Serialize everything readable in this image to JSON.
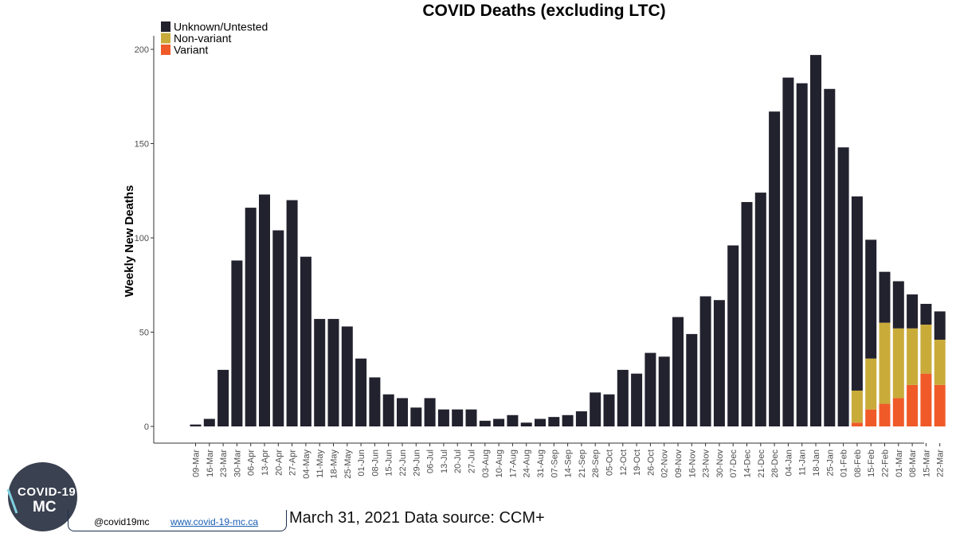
{
  "chart_data": {
    "type": "bar",
    "stacked": true,
    "title": "COVID Deaths (excluding LTC)",
    "xlabel": "",
    "ylabel": "Weekly New Deaths",
    "ylim": [
      0,
      205
    ],
    "yticks": [
      0,
      50,
      100,
      150,
      200
    ],
    "grid": false,
    "legend_position": "top-left",
    "categories": [
      "09-Mar",
      "16-Mar",
      "23-Mar",
      "30-Mar",
      "06-Apr",
      "13-Apr",
      "20-Apr",
      "27-Apr",
      "04-May",
      "11-May",
      "18-May",
      "25-May",
      "01-Jun",
      "08-Jun",
      "15-Jun",
      "22-Jun",
      "29-Jun",
      "06-Jul",
      "13-Jul",
      "20-Jul",
      "27-Jul",
      "03-Aug",
      "10-Aug",
      "17-Aug",
      "24-Aug",
      "31-Aug",
      "07-Sep",
      "14-Sep",
      "21-Sep",
      "28-Sep",
      "05-Oct",
      "12-Oct",
      "19-Oct",
      "26-Oct",
      "02-Nov",
      "09-Nov",
      "16-Nov",
      "23-Nov",
      "30-Nov",
      "07-Dec",
      "14-Dec",
      "21-Dec",
      "28-Dec",
      "04-Jan",
      "11-Jan",
      "18-Jan",
      "25-Jan",
      "01-Feb",
      "08-Feb",
      "15-Feb",
      "22-Feb",
      "01-Mar",
      "08-Mar",
      "15-Mar",
      "22-Mar"
    ],
    "series": [
      {
        "name": "Variant",
        "color": "#f05a28",
        "values": [
          0,
          0,
          0,
          0,
          0,
          0,
          0,
          0,
          0,
          0,
          0,
          0,
          0,
          0,
          0,
          0,
          0,
          0,
          0,
          0,
          0,
          0,
          0,
          0,
          0,
          0,
          0,
          0,
          0,
          0,
          0,
          0,
          0,
          0,
          0,
          0,
          0,
          0,
          0,
          0,
          0,
          0,
          0,
          0,
          0,
          0,
          0,
          0,
          2,
          9,
          12,
          15,
          22,
          28,
          22
        ]
      },
      {
        "name": "Non-variant",
        "color": "#c9ab3a",
        "values": [
          0,
          0,
          0,
          0,
          0,
          0,
          0,
          0,
          0,
          0,
          0,
          0,
          0,
          0,
          0,
          0,
          0,
          0,
          0,
          0,
          0,
          0,
          0,
          0,
          0,
          0,
          0,
          0,
          0,
          0,
          0,
          0,
          0,
          0,
          0,
          0,
          0,
          0,
          0,
          0,
          0,
          0,
          0,
          0,
          0,
          0,
          0,
          0,
          17,
          27,
          43,
          37,
          30,
          26,
          24
        ]
      },
      {
        "name": "Unknown/Untested",
        "color": "#22212e",
        "values": [
          1,
          4,
          30,
          88,
          116,
          123,
          104,
          120,
          90,
          57,
          57,
          53,
          36,
          26,
          17,
          15,
          10,
          15,
          9,
          9,
          9,
          3,
          4,
          6,
          2,
          4,
          5,
          6,
          8,
          18,
          17,
          30,
          28,
          39,
          37,
          58,
          49,
          69,
          67,
          96,
          119,
          124,
          167,
          185,
          182,
          197,
          179,
          148,
          103,
          63,
          27,
          25,
          18,
          11,
          15
        ]
      }
    ],
    "legend_order": [
      "Unknown/Untested",
      "Non-variant",
      "Variant"
    ]
  },
  "footer": {
    "handle": "@covid19mc",
    "website": "www.covid-19-mc.ca",
    "date_source": "March 31, 2021 Data source: CCM+"
  },
  "logo": {
    "line1": "COVID-19",
    "line2": "MC",
    "background": "#3a4150"
  }
}
